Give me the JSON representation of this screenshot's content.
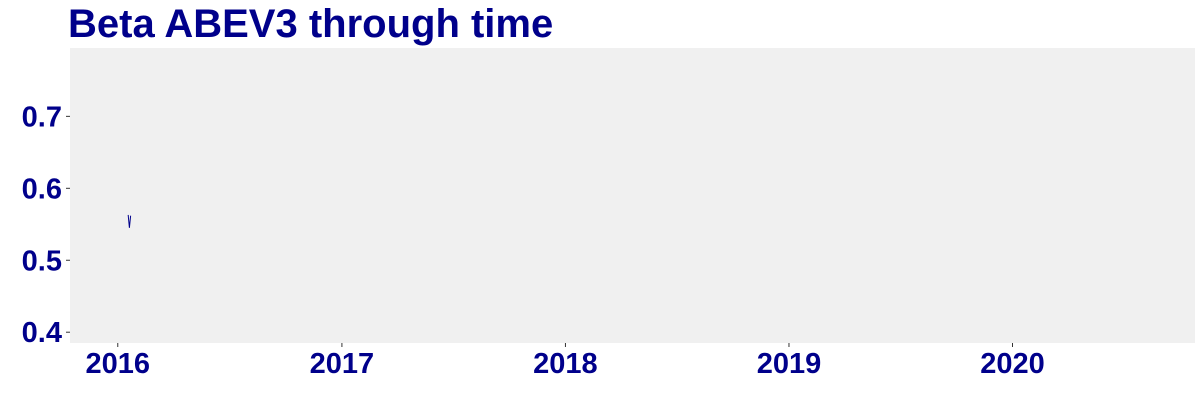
{
  "chart_data": {
    "type": "line",
    "title": "Beta ABEV3 through time",
    "xlabel": "",
    "ylabel": "",
    "x_ticks": [
      "2016",
      "2017",
      "2018",
      "2019",
      "2020"
    ],
    "y_ticks": [
      "0.4",
      "0.5",
      "0.6",
      "0.7"
    ],
    "xlim": [
      "2015-10-15",
      "2020-10-25"
    ],
    "ylim": [
      0.385,
      0.795
    ],
    "series": [
      {
        "points": [
          {
            "x": "2016-01-18",
            "y": 0.563
          },
          {
            "x": "2016-01-20",
            "y": 0.545
          },
          {
            "x": "2016-01-22",
            "y": 0.562
          }
        ]
      }
    ],
    "grid": false,
    "panel_background": "#f0f0f0",
    "text_color": "#00008b",
    "line_color": "#00008b"
  }
}
